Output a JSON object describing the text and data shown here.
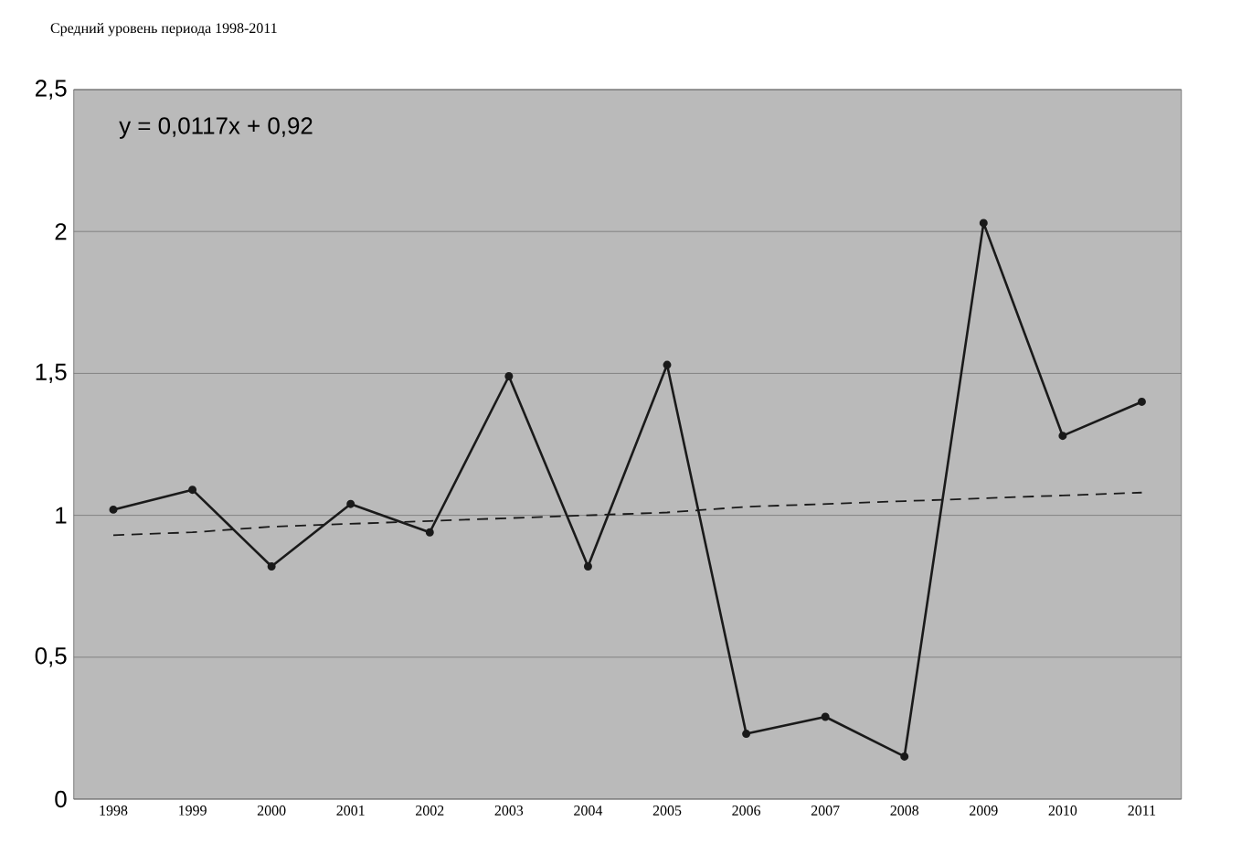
{
  "chart_data": {
    "type": "line",
    "title": "Средний уровень периода 1998-2011",
    "categories": [
      "1998",
      "1999",
      "2000",
      "2001",
      "2002",
      "2003",
      "2004",
      "2005",
      "2006",
      "2007",
      "2008",
      "2009",
      "2010",
      "2011"
    ],
    "series": [
      {
        "color": "#1a1a1a",
        "marker": "circle",
        "line_style": "solid",
        "values": [
          1.02,
          1.09,
          0.82,
          1.04,
          0.94,
          1.49,
          0.82,
          1.53,
          0.23,
          0.29,
          0.15,
          2.03,
          1.28,
          1.4
        ]
      },
      {
        "color": "#1a1a1a",
        "marker": "none",
        "line_style": "dashed",
        "values": [
          0.93,
          0.94,
          0.96,
          0.97,
          0.98,
          0.99,
          1.0,
          1.01,
          1.03,
          1.04,
          1.05,
          1.06,
          1.07,
          1.08
        ]
      }
    ],
    "ylim": [
      0,
      2.5
    ],
    "yticks": [
      {
        "value": 0,
        "label": "0"
      },
      {
        "value": 0.5,
        "label": "0,5"
      },
      {
        "value": 1,
        "label": "1"
      },
      {
        "value": 1.5,
        "label": "1,5"
      },
      {
        "value": 2,
        "label": "2"
      },
      {
        "value": 2.5,
        "label": "2,5"
      }
    ],
    "grid": "y",
    "annotations": [
      "y = 0,0117x + 0,92"
    ]
  }
}
